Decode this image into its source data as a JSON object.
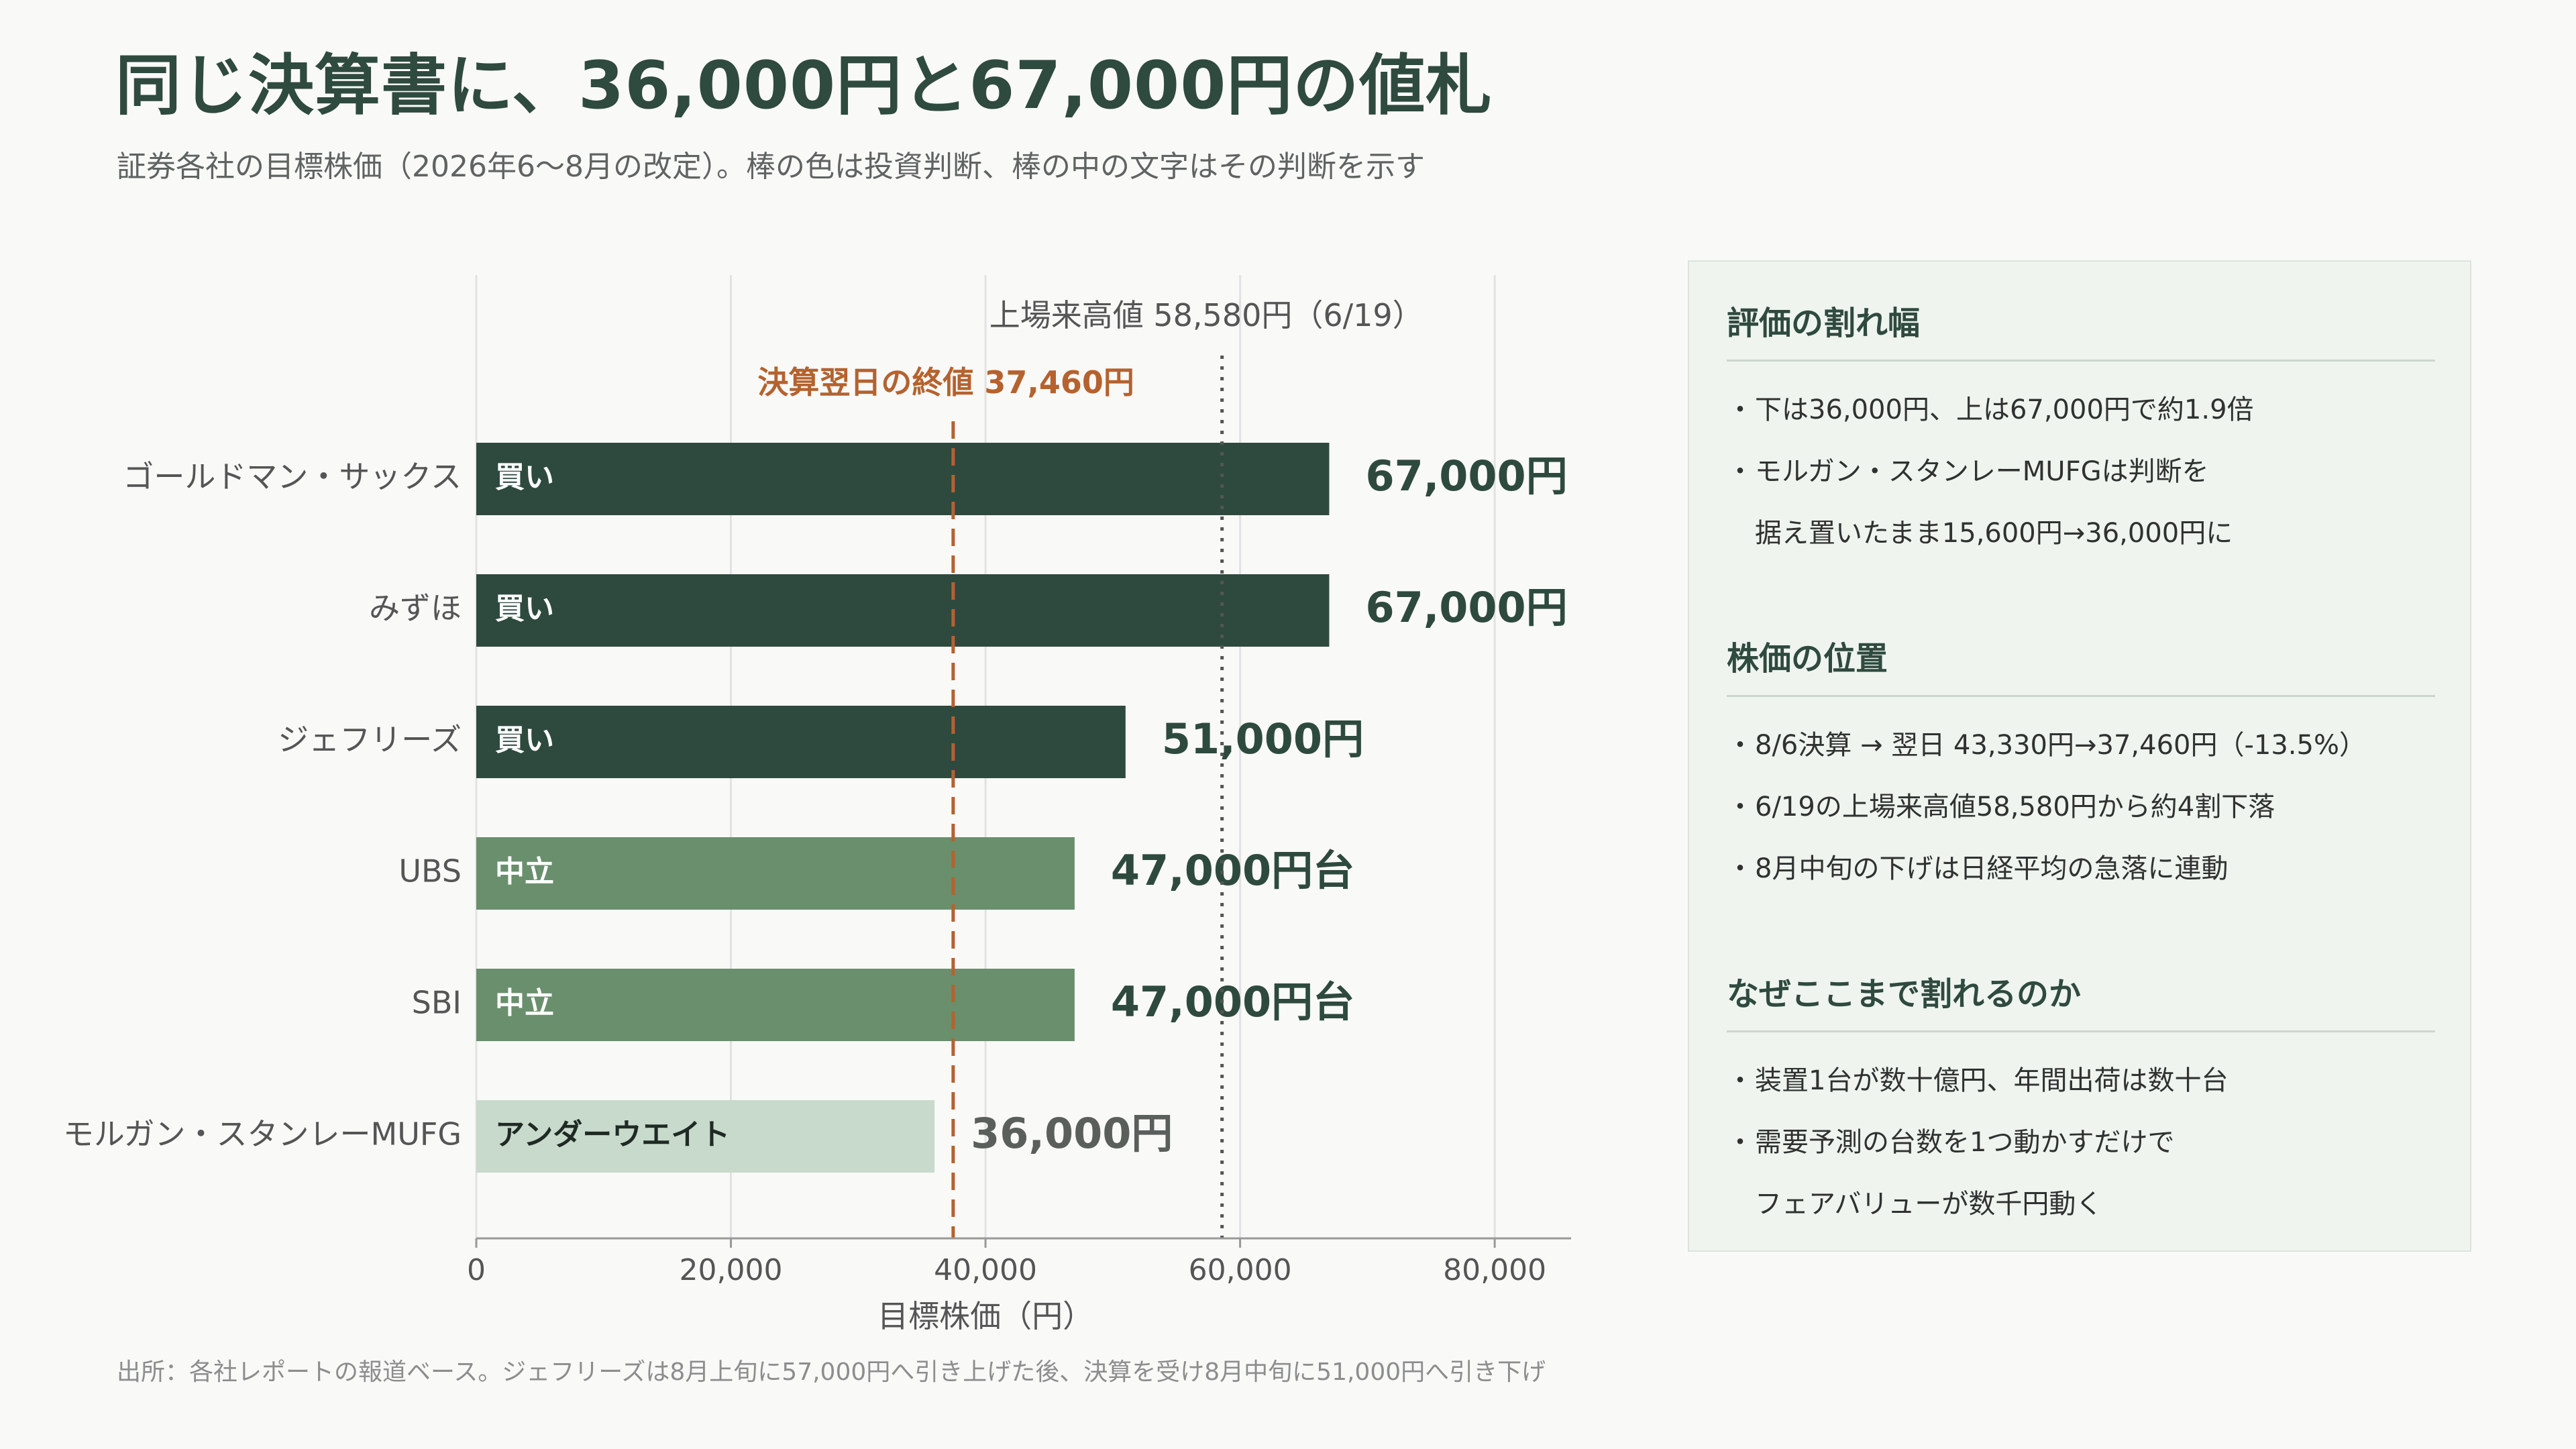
{
  "header": {
    "title": "同じ決算書に、36,000円と67,000円の値札",
    "subtitle": "証券各社の目標株価（2026年6〜8月の改定）。棒の色は投資判断、棒の中の文字はその判断を示す"
  },
  "footnote": "出所：各社レポートの報道ベース。ジェフリーズは8月上旬に57,000円へ引き上げた後、決算を受け8月中旬に51,000円へ引き下げ",
  "colors": {
    "buy": "#2e4a3e",
    "neutral": "#6a8f6d",
    "underweight": "#c8dacb",
    "close_line": "#b5622e",
    "high_line": "#555555",
    "grid": "#e2e2e2",
    "axis": "#999999"
  },
  "chart_data": {
    "type": "bar",
    "orientation": "horizontal",
    "categories": [
      "ゴールドマン・サックス",
      "みずほ",
      "ジェフリーズ",
      "UBS",
      "SBI",
      "モルガン・スタンレーMUFG"
    ],
    "values": [
      67000,
      67000,
      51000,
      47000,
      47000,
      36000
    ],
    "ratings": [
      "買い",
      "買い",
      "買い",
      "中立",
      "中立",
      "アンダーウエイト"
    ],
    "rating_keys": [
      "buy",
      "buy",
      "buy",
      "neutral",
      "neutral",
      "underweight"
    ],
    "value_labels": [
      "67,000円",
      "67,000円",
      "51,000円",
      "47,000円台",
      "47,000円台",
      "36,000円"
    ],
    "xlabel": "目標株価（円）",
    "xlim": [
      0,
      86000
    ],
    "xticks": [
      0,
      20000,
      40000,
      60000,
      80000
    ],
    "xtick_labels": [
      "0",
      "20,000",
      "40,000",
      "60,000",
      "80,000"
    ],
    "grid": true,
    "reference_lines": [
      {
        "value": 37460,
        "label": "決算翌日の終値 37,460円",
        "style": "dashed",
        "color_key": "close_line"
      },
      {
        "value": 58580,
        "label": "上場来高値 58,580円（6/19）",
        "style": "dotted",
        "color_key": "high_line"
      }
    ]
  },
  "panel": {
    "sections": [
      {
        "heading": "評価の割れ幅",
        "items": [
          {
            "bullet": "・",
            "text": "下は36,000円、上は67,000円で約1.9倍"
          },
          {
            "bullet": "・",
            "text": "モルガン・スタンレーMUFGは判断を"
          },
          {
            "bullet": "",
            "text": "据え置いたまま15,600円→36,000円に"
          }
        ]
      },
      {
        "heading": "株価の位置",
        "items": [
          {
            "bullet": "・",
            "text": "8/6決算 → 翌日 43,330円→37,460円（-13.5%）"
          },
          {
            "bullet": "・",
            "text": "6/19の上場来高値58,580円から約4割下落"
          },
          {
            "bullet": "・",
            "text": "8月中旬の下げは日経平均の急落に連動"
          }
        ]
      },
      {
        "heading": "なぜここまで割れるのか",
        "items": [
          {
            "bullet": "・",
            "text": "装置1台が数十億円、年間出荷は数十台"
          },
          {
            "bullet": "・",
            "text": "需要予測の台数を1つ動かすだけで"
          },
          {
            "bullet": "",
            "text": "フェアバリューが数千円動く"
          }
        ]
      }
    ]
  }
}
